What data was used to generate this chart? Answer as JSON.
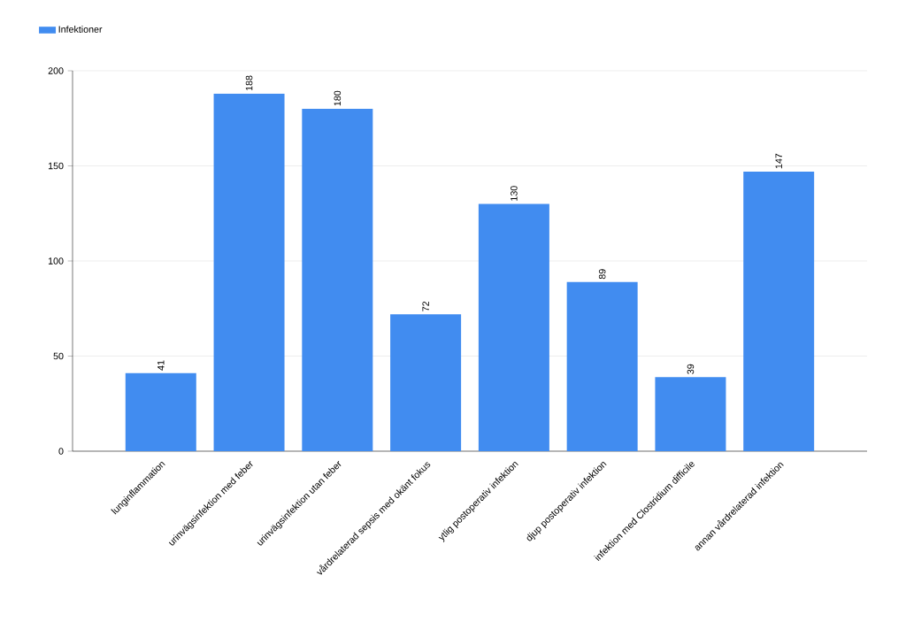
{
  "chart_data": {
    "type": "bar",
    "categories": [
      "lunginflammation",
      "urinvägsinfektion med feber",
      "urinvägsinfektion utan feber",
      "vårdrelaterad sepsis med okänt fokus",
      "ytlig postoperativ infektion",
      "djup postoperativ infektion",
      "infektion med Clostridium difficile",
      "annan vårdrelaterad infektion"
    ],
    "series": [
      {
        "name": "Infektioner",
        "color": "#418cf0",
        "values": [
          41,
          188,
          180,
          72,
          130,
          89,
          39,
          147
        ]
      }
    ],
    "ylim": [
      0,
      200
    ],
    "yticks": [
      0,
      50,
      100,
      150,
      200
    ],
    "grid": "y",
    "legend": "top left",
    "data_labels": true
  }
}
